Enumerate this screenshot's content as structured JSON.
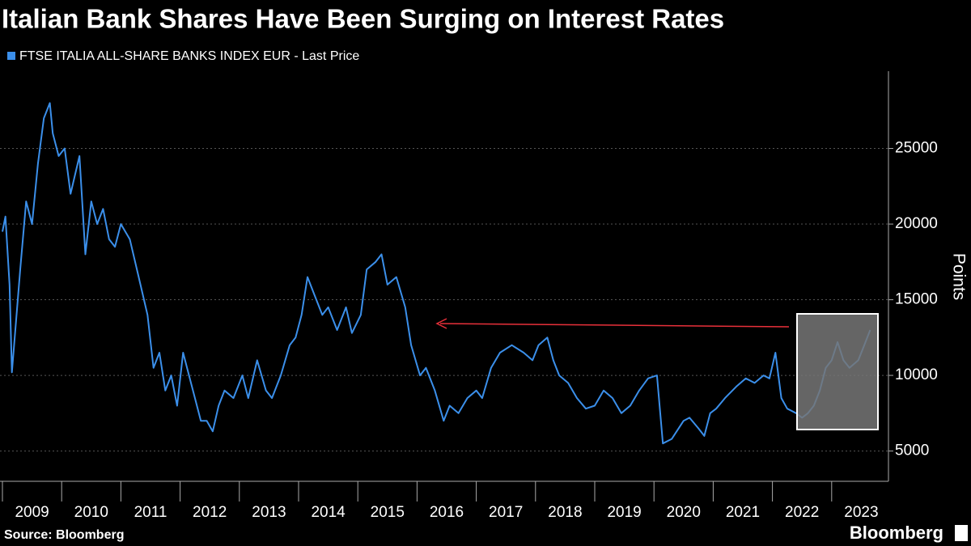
{
  "chart_data": {
    "type": "line",
    "title": "Italian Bank Shares Have Been Surging on Interest Rates",
    "y_label": "Points",
    "source": "Source: Bloomberg",
    "brand": "Bloomberg",
    "xlim": [
      2009,
      2024
    ],
    "xticks": [
      2009,
      2010,
      2011,
      2012,
      2013,
      2014,
      2015,
      2016,
      2017,
      2018,
      2019,
      2020,
      2021,
      2022,
      2023
    ],
    "ylim": [
      3000,
      30000
    ],
    "yticks": [
      5000,
      10000,
      15000,
      20000,
      25000
    ],
    "grid": true,
    "x": [
      2009.0,
      2009.05,
      2009.12,
      2009.16,
      2009.3,
      2009.4,
      2009.5,
      2009.6,
      2009.7,
      2009.8,
      2009.85,
      2009.95,
      2010.05,
      2010.15,
      2010.3,
      2010.4,
      2010.5,
      2010.6,
      2010.7,
      2010.8,
      2010.9,
      2011.0,
      2011.15,
      2011.3,
      2011.45,
      2011.55,
      2011.65,
      2011.75,
      2011.85,
      2011.95,
      2012.05,
      2012.15,
      2012.25,
      2012.35,
      2012.45,
      2012.55,
      2012.65,
      2012.75,
      2012.9,
      2013.05,
      2013.15,
      2013.3,
      2013.45,
      2013.55,
      2013.7,
      2013.85,
      2013.95,
      2014.05,
      2014.15,
      2014.25,
      2014.4,
      2014.5,
      2014.65,
      2014.8,
      2014.9,
      2015.05,
      2015.15,
      2015.3,
      2015.4,
      2015.5,
      2015.65,
      2015.8,
      2015.9,
      2016.05,
      2016.15,
      2016.3,
      2016.45,
      2016.55,
      2016.7,
      2016.85,
      2017.0,
      2017.1,
      2017.25,
      2017.4,
      2017.6,
      2017.8,
      2017.95,
      2018.05,
      2018.2,
      2018.3,
      2018.4,
      2018.55,
      2018.7,
      2018.85,
      2019.0,
      2019.15,
      2019.3,
      2019.45,
      2019.6,
      2019.75,
      2019.9,
      2020.05,
      2020.15,
      2020.3,
      2020.5,
      2020.6,
      2020.75,
      2020.85,
      2020.95,
      2021.05,
      2021.2,
      2021.4,
      2021.55,
      2021.7,
      2021.85,
      2021.95,
      2022.05,
      2022.15,
      2022.25,
      2022.4,
      2022.5,
      2022.6,
      2022.7,
      2022.8,
      2022.9,
      2023.0,
      2023.1,
      2023.2,
      2023.3,
      2023.45,
      2023.55,
      2023.65
    ],
    "series": [
      {
        "name": "FTSE ITALIA ALL-SHARE BANKS INDEX EUR - Last Price",
        "color": "#3b8fea",
        "values": [
          19500,
          20500,
          16000,
          10200,
          17000,
          21500,
          20000,
          24000,
          27000,
          28000,
          26000,
          24500,
          25000,
          22000,
          24500,
          18000,
          21500,
          20000,
          21000,
          19000,
          18500,
          20000,
          19000,
          16500,
          14000,
          10500,
          11500,
          9000,
          10000,
          8000,
          11500,
          10000,
          8500,
          7000,
          7000,
          6300,
          8000,
          9000,
          8500,
          10000,
          8500,
          11000,
          9000,
          8500,
          10000,
          12000,
          12500,
          14000,
          16500,
          15500,
          14000,
          14500,
          13000,
          14500,
          12800,
          14000,
          17000,
          17500,
          18000,
          16000,
          16500,
          14500,
          12000,
          10000,
          10500,
          9000,
          7000,
          8000,
          7500,
          8500,
          9000,
          8500,
          10500,
          11500,
          12000,
          11500,
          11000,
          12000,
          12500,
          11000,
          10000,
          9500,
          8500,
          7800,
          8000,
          9000,
          8500,
          7500,
          8000,
          9000,
          9800,
          10000,
          5500,
          5800,
          7000,
          7200,
          6500,
          6000,
          7500,
          7800,
          8500,
          9300,
          9800,
          9500,
          10000,
          9800,
          11500,
          8500,
          7800,
          7500,
          7200,
          7500,
          8000,
          9000,
          10500,
          11000,
          12200,
          11000,
          10500,
          11000,
          12000,
          13000
        ]
      }
    ]
  }
}
